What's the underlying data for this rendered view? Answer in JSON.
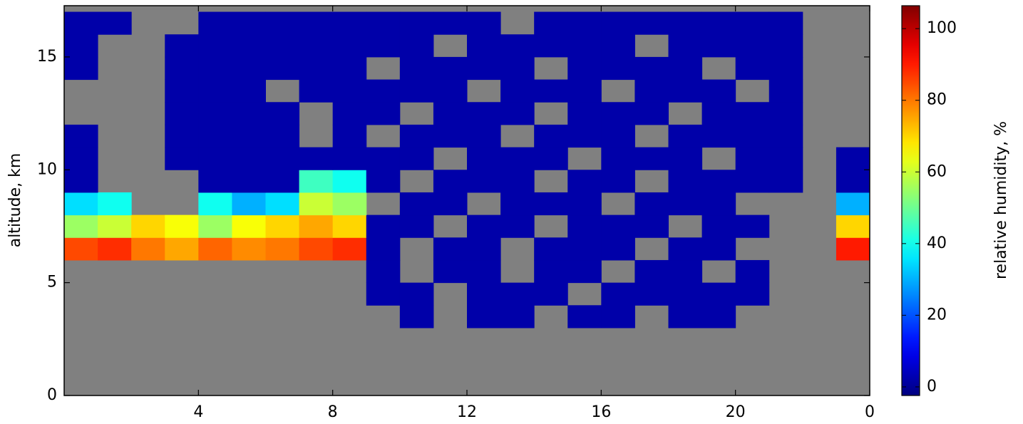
{
  "chart_data": {
    "type": "heatmap",
    "x_label": null,
    "y_label": "altitude, km",
    "colorbar_label": "relative humidity, %",
    "xlim": [
      0,
      24
    ],
    "xticks": [
      4,
      8,
      12,
      16,
      20,
      {
        "value": 24,
        "label": "0"
      }
    ],
    "ylim": [
      0,
      17.27
    ],
    "yticks": [
      0,
      5,
      10,
      15
    ],
    "clim": [
      -2.4,
      106.4
    ],
    "cticks": [
      0,
      20,
      40,
      60,
      80,
      100
    ],
    "colormap": "jet",
    "background": "#808080",
    "x_edges": [
      0,
      1,
      2,
      3,
      4,
      5,
      6,
      7,
      8,
      9,
      10,
      11,
      12,
      13,
      14,
      15,
      16,
      17,
      18,
      19,
      20,
      21,
      22,
      23,
      24
    ],
    "y_edges": [
      0,
      1,
      2,
      3,
      4,
      5,
      6,
      7,
      8,
      9,
      10,
      11,
      12,
      13,
      14,
      15,
      16,
      17
    ],
    "z": [
      [
        null,
        null,
        null,
        null,
        null,
        null,
        null,
        null,
        null,
        null,
        null,
        null,
        null,
        null,
        null,
        null,
        null,
        null,
        null,
        null,
        null,
        null,
        null,
        null
      ],
      [
        null,
        null,
        null,
        null,
        null,
        null,
        null,
        null,
        null,
        null,
        null,
        null,
        null,
        null,
        null,
        null,
        null,
        null,
        null,
        null,
        null,
        null,
        null,
        null
      ],
      [
        null,
        null,
        null,
        null,
        null,
        null,
        null,
        null,
        null,
        null,
        null,
        null,
        null,
        null,
        null,
        null,
        null,
        null,
        null,
        null,
        null,
        null,
        null,
        null
      ],
      [
        null,
        null,
        null,
        null,
        null,
        null,
        null,
        null,
        null,
        null,
        2,
        null,
        2,
        2,
        null,
        2,
        2,
        null,
        2,
        2,
        null,
        null,
        null,
        null
      ],
      [
        null,
        null,
        null,
        null,
        null,
        null,
        null,
        null,
        null,
        2,
        2,
        null,
        2,
        2,
        2,
        null,
        2,
        2,
        2,
        2,
        2,
        null,
        null,
        null
      ],
      [
        null,
        null,
        null,
        null,
        null,
        null,
        null,
        null,
        null,
        2,
        null,
        2,
        2,
        null,
        2,
        2,
        null,
        2,
        2,
        null,
        2,
        null,
        null,
        null
      ],
      [
        85,
        88,
        80,
        75,
        82,
        78,
        80,
        85,
        88,
        2,
        null,
        2,
        2,
        null,
        2,
        2,
        2,
        null,
        2,
        2,
        null,
        null,
        null,
        90
      ],
      [
        55,
        60,
        70,
        65,
        55,
        65,
        70,
        75,
        70,
        2,
        2,
        null,
        2,
        2,
        null,
        2,
        2,
        2,
        null,
        2,
        2,
        null,
        null,
        70
      ],
      [
        35,
        40,
        null,
        null,
        40,
        30,
        35,
        60,
        55,
        null,
        2,
        2,
        null,
        2,
        2,
        2,
        null,
        2,
        2,
        2,
        null,
        null,
        null,
        30
      ],
      [
        2,
        null,
        null,
        null,
        2,
        2,
        2,
        45,
        40,
        2,
        null,
        2,
        2,
        2,
        null,
        2,
        2,
        null,
        2,
        2,
        2,
        2,
        null,
        2
      ],
      [
        2,
        null,
        null,
        2,
        2,
        2,
        2,
        2,
        2,
        2,
        2,
        null,
        2,
        2,
        2,
        null,
        2,
        2,
        2,
        null,
        2,
        2,
        null,
        2
      ],
      [
        2,
        null,
        null,
        2,
        2,
        2,
        2,
        null,
        2,
        null,
        2,
        2,
        2,
        null,
        2,
        2,
        2,
        null,
        2,
        2,
        2,
        2,
        null,
        null
      ],
      [
        null,
        null,
        null,
        2,
        2,
        2,
        2,
        null,
        2,
        2,
        null,
        2,
        2,
        2,
        null,
        2,
        2,
        2,
        null,
        2,
        2,
        2,
        null,
        null
      ],
      [
        null,
        null,
        null,
        2,
        2,
        2,
        null,
        2,
        2,
        2,
        2,
        2,
        null,
        2,
        2,
        2,
        null,
        2,
        2,
        2,
        null,
        2,
        null,
        null
      ],
      [
        2,
        null,
        null,
        2,
        2,
        2,
        2,
        2,
        2,
        null,
        2,
        2,
        2,
        2,
        null,
        2,
        2,
        2,
        2,
        null,
        2,
        2,
        null,
        null
      ],
      [
        2,
        null,
        null,
        2,
        2,
        2,
        2,
        2,
        2,
        2,
        2,
        null,
        2,
        2,
        2,
        2,
        2,
        null,
        2,
        2,
        2,
        2,
        null,
        null
      ],
      [
        2,
        2,
        null,
        null,
        2,
        2,
        2,
        2,
        2,
        2,
        2,
        2,
        2,
        null,
        2,
        2,
        2,
        2,
        2,
        2,
        2,
        2,
        null,
        null
      ]
    ]
  }
}
